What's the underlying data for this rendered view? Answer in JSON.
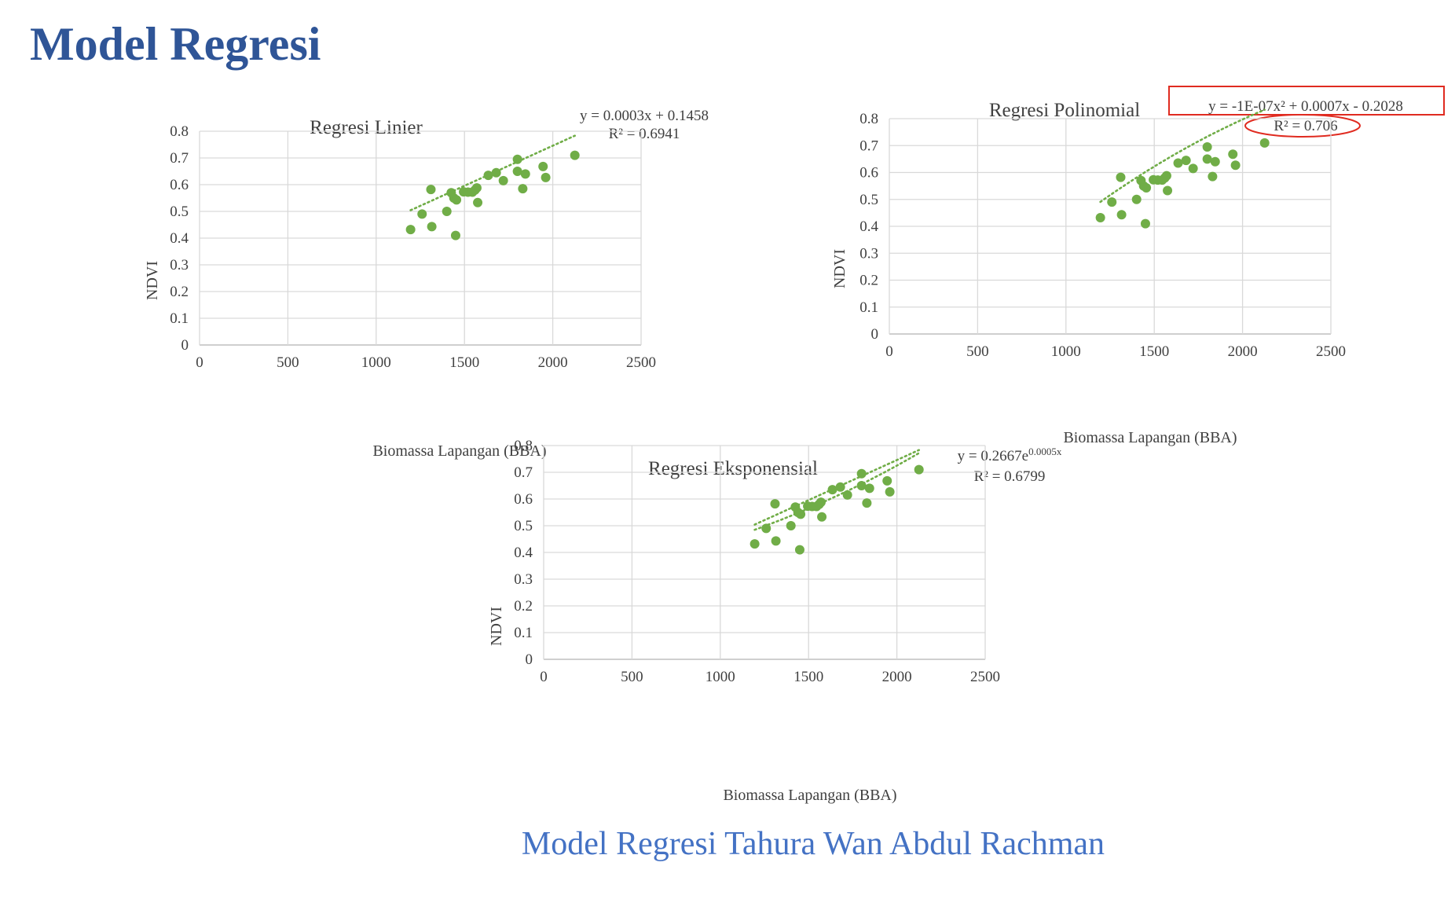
{
  "page": {
    "title": "Model Regresi",
    "caption": "Model Regresi Tahura Wan Abdul Rachman",
    "point_color": "#70ad47",
    "highlight_color": "#e02b20",
    "title_color": "#2f5597",
    "caption_color": "#4472c4"
  },
  "chart_data": [
    {
      "type": "scatter",
      "title": "Regresi Linier",
      "xlabel": "Biomassa Lapangan (BBA)",
      "ylabel": "NDVI",
      "xlim": [
        0,
        2500
      ],
      "ylim": [
        0,
        0.8
      ],
      "xticks": [
        0,
        500,
        1000,
        1500,
        2000,
        2500
      ],
      "yticks": [
        0,
        0.1,
        0.2,
        0.3,
        0.4,
        0.5,
        0.6,
        0.7,
        0.8
      ],
      "grid": true,
      "equation": "y = 0.0003x + 0.1458",
      "r2_label": "R² = 0.6941",
      "trendline": {
        "type": "linear",
        "a": 0.0003,
        "b": 0.1458
      },
      "points": [
        {
          "x": 1195,
          "y": 0.432
        },
        {
          "x": 1260,
          "y": 0.49
        },
        {
          "x": 1310,
          "y": 0.582
        },
        {
          "x": 1315,
          "y": 0.443
        },
        {
          "x": 1400,
          "y": 0.5
        },
        {
          "x": 1425,
          "y": 0.57
        },
        {
          "x": 1440,
          "y": 0.55
        },
        {
          "x": 1450,
          "y": 0.41
        },
        {
          "x": 1455,
          "y": 0.543
        },
        {
          "x": 1495,
          "y": 0.573
        },
        {
          "x": 1520,
          "y": 0.572
        },
        {
          "x": 1545,
          "y": 0.572
        },
        {
          "x": 1560,
          "y": 0.58
        },
        {
          "x": 1570,
          "y": 0.588
        },
        {
          "x": 1575,
          "y": 0.533
        },
        {
          "x": 1635,
          "y": 0.635
        },
        {
          "x": 1680,
          "y": 0.645
        },
        {
          "x": 1720,
          "y": 0.615
        },
        {
          "x": 1800,
          "y": 0.695
        },
        {
          "x": 1800,
          "y": 0.65
        },
        {
          "x": 1830,
          "y": 0.585
        },
        {
          "x": 1845,
          "y": 0.64
        },
        {
          "x": 1945,
          "y": 0.668
        },
        {
          "x": 1960,
          "y": 0.627
        },
        {
          "x": 2125,
          "y": 0.71
        }
      ]
    },
    {
      "type": "scatter",
      "title": "Regresi Polinomial",
      "xlabel": "Biomassa Lapangan (BBA)",
      "ylabel": "NDVI",
      "xlim": [
        0,
        2500
      ],
      "ylim": [
        0,
        0.8
      ],
      "xticks": [
        0,
        500,
        1000,
        1500,
        2000,
        2500
      ],
      "yticks": [
        0,
        0.1,
        0.2,
        0.3,
        0.4,
        0.5,
        0.6,
        0.7,
        0.8
      ],
      "grid": true,
      "equation": "y = -1E-07x² + 0.0007x - 0.2028",
      "r2_label": "R² = 0.706",
      "highlighted": true,
      "trendline": {
        "type": "polynomial",
        "c2": -1e-07,
        "c1": 0.0007,
        "c0": -0.2028
      },
      "points": [
        {
          "x": 1195,
          "y": 0.432
        },
        {
          "x": 1260,
          "y": 0.49
        },
        {
          "x": 1310,
          "y": 0.582
        },
        {
          "x": 1315,
          "y": 0.443
        },
        {
          "x": 1400,
          "y": 0.5
        },
        {
          "x": 1425,
          "y": 0.57
        },
        {
          "x": 1440,
          "y": 0.55
        },
        {
          "x": 1450,
          "y": 0.41
        },
        {
          "x": 1455,
          "y": 0.543
        },
        {
          "x": 1495,
          "y": 0.573
        },
        {
          "x": 1520,
          "y": 0.572
        },
        {
          "x": 1545,
          "y": 0.572
        },
        {
          "x": 1560,
          "y": 0.58
        },
        {
          "x": 1570,
          "y": 0.588
        },
        {
          "x": 1575,
          "y": 0.533
        },
        {
          "x": 1635,
          "y": 0.635
        },
        {
          "x": 1680,
          "y": 0.645
        },
        {
          "x": 1720,
          "y": 0.615
        },
        {
          "x": 1800,
          "y": 0.695
        },
        {
          "x": 1800,
          "y": 0.65
        },
        {
          "x": 1830,
          "y": 0.585
        },
        {
          "x": 1845,
          "y": 0.64
        },
        {
          "x": 1945,
          "y": 0.668
        },
        {
          "x": 1960,
          "y": 0.627
        },
        {
          "x": 2125,
          "y": 0.71
        }
      ]
    },
    {
      "type": "scatter",
      "title": "Regresi Eksponensial",
      "xlabel": "Biomassa Lapangan (BBA)",
      "ylabel": "NDVI",
      "xlim": [
        0,
        2500
      ],
      "ylim": [
        0,
        0.8
      ],
      "xticks": [
        0,
        500,
        1000,
        1500,
        2000,
        2500
      ],
      "yticks": [
        0,
        0.1,
        0.2,
        0.3,
        0.4,
        0.5,
        0.6,
        0.7,
        0.8
      ],
      "grid": true,
      "equation_base": "y = 0.2667e",
      "equation_exponent": "0.0005x",
      "r2_label": "R² = 0.6799",
      "trendline": {
        "type": "exponential",
        "a": 0.2667,
        "b": 0.0005
      },
      "points": [
        {
          "x": 1195,
          "y": 0.432
        },
        {
          "x": 1260,
          "y": 0.49
        },
        {
          "x": 1310,
          "y": 0.582
        },
        {
          "x": 1315,
          "y": 0.443
        },
        {
          "x": 1400,
          "y": 0.5
        },
        {
          "x": 1425,
          "y": 0.57
        },
        {
          "x": 1440,
          "y": 0.55
        },
        {
          "x": 1450,
          "y": 0.41
        },
        {
          "x": 1455,
          "y": 0.543
        },
        {
          "x": 1495,
          "y": 0.573
        },
        {
          "x": 1520,
          "y": 0.572
        },
        {
          "x": 1545,
          "y": 0.572
        },
        {
          "x": 1560,
          "y": 0.58
        },
        {
          "x": 1570,
          "y": 0.588
        },
        {
          "x": 1575,
          "y": 0.533
        },
        {
          "x": 1635,
          "y": 0.635
        },
        {
          "x": 1680,
          "y": 0.645
        },
        {
          "x": 1720,
          "y": 0.615
        },
        {
          "x": 1800,
          "y": 0.695
        },
        {
          "x": 1800,
          "y": 0.65
        },
        {
          "x": 1830,
          "y": 0.585
        },
        {
          "x": 1845,
          "y": 0.64
        },
        {
          "x": 1945,
          "y": 0.668
        },
        {
          "x": 1960,
          "y": 0.627
        },
        {
          "x": 2125,
          "y": 0.71
        }
      ]
    }
  ]
}
